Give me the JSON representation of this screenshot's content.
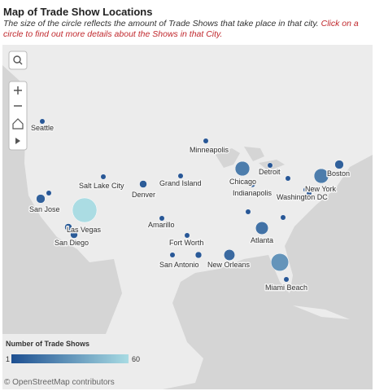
{
  "header": {
    "title": "Map of Trade Show Locations",
    "subtitle": "The size of the circle reflects the amount of Trade Shows that take place in that city.",
    "subtitle_action": "Click on a circle to find out more details about the Shows in that City."
  },
  "map": {
    "cities": [
      {
        "label": "Seattle",
        "count": 1
      },
      {
        "label": "San Jose",
        "count": 5
      },
      {
        "label": "Salt Lake City",
        "count": 1
      },
      {
        "label": "Denver",
        "count": 3
      },
      {
        "label": "Grand Island",
        "count": 1
      },
      {
        "label": "Minneapolis",
        "count": 1
      },
      {
        "label": "Chicago",
        "count": 18
      },
      {
        "label": "Detroit",
        "count": 1
      },
      {
        "label": "Indianapolis",
        "count": 2
      },
      {
        "label": "Boston",
        "count": 5
      },
      {
        "label": "New York",
        "count": 18
      },
      {
        "label": "Washington  DC",
        "count": 1
      },
      {
        "label": "Las Vegas",
        "count": 60
      },
      {
        "label": "San Diego",
        "count": 3
      },
      {
        "label": "Amarillo",
        "count": 1
      },
      {
        "label": "Fort Worth",
        "count": 1
      },
      {
        "label": "San Antonio",
        "count": 1
      },
      {
        "label": "New Orleans",
        "count": 9
      },
      {
        "label": "Atlanta",
        "count": 13
      },
      {
        "label": "Miami Beach",
        "count": 28
      },
      {
        "label": null,
        "count": 3
      },
      {
        "label": null,
        "count": 1
      },
      {
        "label": null,
        "count": 2
      },
      {
        "label": null,
        "count": 1
      },
      {
        "label": null,
        "count": 1
      },
      {
        "label": null,
        "count": 1
      },
      {
        "label": null,
        "count": 1
      },
      {
        "label": null,
        "count": 1
      }
    ],
    "legend": {
      "title": "Number of Trade Shows",
      "min": 1,
      "max": 60
    },
    "attribution": "© OpenStreetMap contributors"
  }
}
